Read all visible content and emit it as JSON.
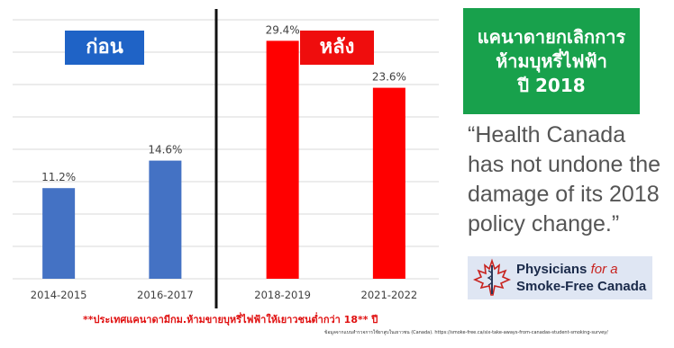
{
  "chart_data": {
    "type": "bar",
    "categories": [
      "2014-2015",
      "2016-2017",
      "2018-2019",
      "2021-2022"
    ],
    "values": [
      11.2,
      14.6,
      29.4,
      23.6
    ],
    "value_labels": [
      "11.2%",
      "14.6%",
      "29.4%",
      "23.6%"
    ],
    "bar_colors": [
      "#4472c4",
      "#4472c4",
      "#ff0000",
      "#ff0000"
    ],
    "ylim": [
      0,
      32
    ],
    "grid": true,
    "groups": {
      "before_label": "ก่อน",
      "after_label": "หลัง",
      "before_color": "#1f63c6",
      "after_color": "#ef0d0d"
    },
    "divider_after_index": 1
  },
  "title_box": {
    "lines": [
      "แคนาดายกเลิกการ",
      "ห้ามบุหรี่ไฟฟ้า",
      "ปี 2018"
    ],
    "background": "#18a14c"
  },
  "quote": "“Health Canada has not undone the damage of its 2018 policy change.”",
  "logo": {
    "line1": "Physicians",
    "line1_italic": "for a",
    "line2": "Smoke-Free Canada"
  },
  "footnote": "**ประเทศแคนาดามีกม.ห้ามขายบุหรี่ไฟฟ้าให้เยาวชนต่ำกว่า 18** ปี",
  "source": "ข้อมูลจากแบบสำรวจการใช้ยาสูบในเยาวชน (Canada). https://smoke-free.ca/six-take-aways-from-canadas-student-smoking-survey/"
}
